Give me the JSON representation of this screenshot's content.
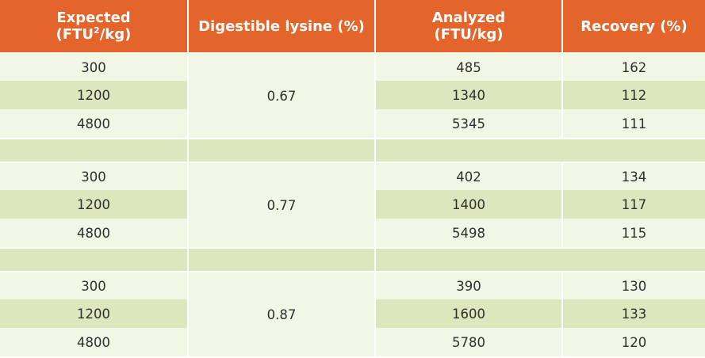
{
  "headers": {
    "expected": "Expected",
    "expected_unit_prefix": "(FTU",
    "expected_sup": "2",
    "expected_unit_suffix": "/kg)",
    "lysine": "Digestible lysine (%)",
    "analyzed": "Analyzed",
    "analyzed_unit": "(FTU/kg)",
    "recovery": "Recovery (%)"
  },
  "groups": [
    {
      "lysine": "0.67",
      "rows": [
        {
          "expected": "300",
          "analyzed": "485",
          "recovery": "162"
        },
        {
          "expected": "1200",
          "analyzed": "1340",
          "recovery": "112"
        },
        {
          "expected": "4800",
          "analyzed": "5345",
          "recovery": "111"
        }
      ]
    },
    {
      "lysine": "0.77",
      "rows": [
        {
          "expected": "300",
          "analyzed": "402",
          "recovery": "134"
        },
        {
          "expected": "1200",
          "analyzed": "1400",
          "recovery": "117"
        },
        {
          "expected": "4800",
          "analyzed": "5498",
          "recovery": "115"
        }
      ]
    },
    {
      "lysine": "0.87",
      "rows": [
        {
          "expected": "300",
          "analyzed": "390",
          "recovery": "130"
        },
        {
          "expected": "1200",
          "analyzed": "1600",
          "recovery": "133"
        },
        {
          "expected": "4800",
          "analyzed": "5780",
          "recovery": "120"
        }
      ]
    }
  ]
}
